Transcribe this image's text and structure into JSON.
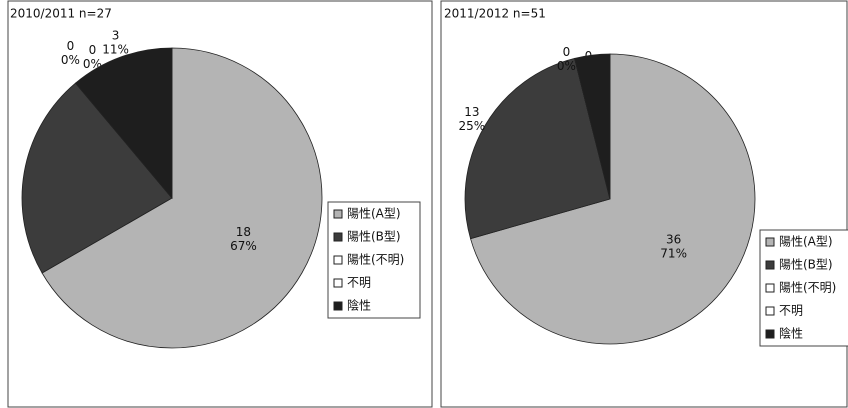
{
  "chart_data": [
    {
      "type": "pie",
      "title": "2010/2011 n=27",
      "categories": [
        "陽性(A型)",
        "陽性(B型)",
        "陽性(不明)",
        "不明",
        "陰性"
      ],
      "values": [
        18,
        6,
        0,
        0,
        3
      ],
      "percent_labels": [
        "67%",
        null,
        "0%",
        "0%",
        "11%"
      ],
      "colors": [
        "#b4b4b4",
        "#3c3c3c",
        "#ffffff",
        "#ffffff",
        "#1e1e1e"
      ],
      "legend": "right"
    },
    {
      "type": "pie",
      "title": "2011/2012 n=51",
      "categories": [
        "陽性(A型)",
        "陽性(B型)",
        "陽性(不明)",
        "不明",
        "陰性"
      ],
      "values": [
        36,
        13,
        0,
        0,
        2
      ],
      "percent_labels": [
        "71%",
        "25%",
        "0%",
        "0%",
        null
      ],
      "colors": [
        "#b4b4b4",
        "#3c3c3c",
        "#ffffff",
        "#ffffff",
        "#1e1e1e"
      ],
      "legend": "right"
    }
  ]
}
